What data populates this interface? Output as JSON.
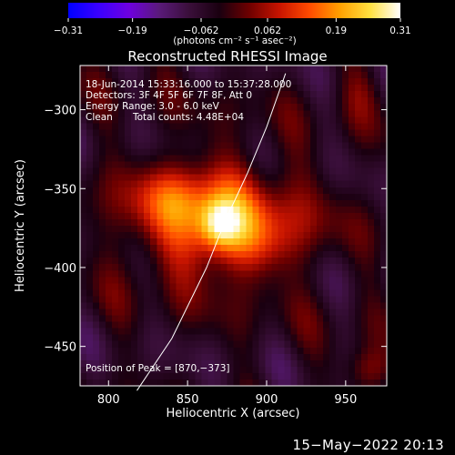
{
  "chart_data": {
    "type": "heatmap",
    "title": "Reconstructed RHESSI Image",
    "xlabel": "Heliocentric X (arcsec)",
    "ylabel": "Heliocentric Y (arcsec)",
    "xlim": [
      782,
      976
    ],
    "ylim": [
      -475,
      -272
    ],
    "x_ticks": [
      800,
      850,
      900,
      950
    ],
    "x_tick_labels": [
      "800",
      "850",
      "900",
      "950"
    ],
    "y_ticks": [
      -300,
      -350,
      -400,
      -450
    ],
    "y_tick_labels": [
      "−300",
      "−350",
      "−400",
      "−450"
    ],
    "colorbar": {
      "range": [
        -0.31,
        0.31
      ],
      "ticks": [
        -0.31,
        -0.19,
        -0.062,
        0.062,
        0.19,
        0.31
      ],
      "tick_labels": [
        "−0.31",
        "−0.19",
        "−0.062",
        "0.062",
        "0.19",
        "0.31"
      ],
      "unit_label": "(photons cm⁻² s⁻¹ asec⁻²)",
      "colors": [
        "#0000ff",
        "#3a00ff",
        "#6e00e0",
        "#5a1a7a",
        "#3a0f3a",
        "#1a0010",
        "#6e0000",
        "#c81400",
        "#ff4b00",
        "#ffa000",
        "#ffe040",
        "#ffffff"
      ]
    },
    "annotations": [
      "18-Jun-2014 15:33:16.000 to 15:37:28.000",
      "Detectors: 3F 4F 5F 6F 7F 8F, Att 0",
      "Energy Range: 3.0 - 6.0 keV",
      "Clean",
      "Total counts: 4.48E+04"
    ],
    "peak_label": "Position of Peak = [870,−373]",
    "peak": {
      "x": 870,
      "y": -373,
      "value": 0.31
    },
    "sources": [
      {
        "x": 868,
        "y": -370,
        "sx": 38,
        "sy": 26,
        "amp": 0.2
      },
      {
        "x": 870,
        "y": -373,
        "sx": 9,
        "sy": 11,
        "amp": 0.17
      },
      {
        "x": 842,
        "y": -355,
        "sx": 18,
        "sy": 13,
        "amp": 0.06
      },
      {
        "x": 895,
        "y": -385,
        "sx": 20,
        "sy": 14,
        "amp": 0.05
      },
      {
        "x": 965,
        "y": -465,
        "sx": 12,
        "sy": 10,
        "amp": 0.09
      },
      {
        "x": 960,
        "y": -287,
        "sx": 10,
        "sy": 14,
        "amp": 0.05
      }
    ],
    "limb_curve": [
      [
        818,
        -478
      ],
      [
        840,
        -445
      ],
      [
        862,
        -400
      ],
      [
        874,
        -370
      ],
      [
        888,
        -340
      ],
      [
        900,
        -311
      ],
      [
        912,
        -277
      ]
    ],
    "limb_color": "#ffffff"
  },
  "footer": {
    "date": "15−May−2022 20:13"
  }
}
